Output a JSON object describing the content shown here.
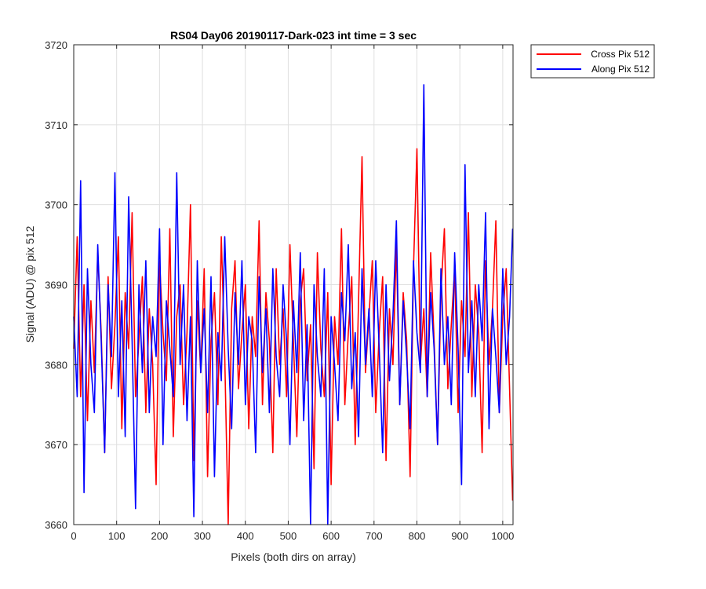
{
  "chart_data": {
    "type": "line",
    "title": "RS04 Day06 20190117-Dark-023 int time = 3 sec",
    "xlabel": "Pixels (both dirs on array)",
    "ylabel": "Signal (ADU) @ pix 512",
    "xlim": [
      0,
      1024
    ],
    "ylim": [
      3660,
      3720
    ],
    "xticks": [
      0,
      100,
      200,
      300,
      400,
      500,
      600,
      700,
      800,
      900,
      1000
    ],
    "yticks": [
      3660,
      3670,
      3680,
      3690,
      3700,
      3710,
      3720
    ],
    "grid": true,
    "legend_position": "outside top-right",
    "series": [
      {
        "name": "Cross Pix 512",
        "color": "#ff0000",
        "x": [
          0,
          8,
          16,
          24,
          32,
          40,
          48,
          56,
          64,
          72,
          80,
          88,
          96,
          104,
          112,
          120,
          128,
          136,
          144,
          152,
          160,
          168,
          176,
          184,
          192,
          200,
          208,
          216,
          224,
          232,
          240,
          248,
          256,
          264,
          272,
          280,
          288,
          296,
          304,
          312,
          320,
          328,
          336,
          344,
          352,
          360,
          368,
          376,
          384,
          392,
          400,
          408,
          416,
          424,
          432,
          440,
          448,
          456,
          464,
          472,
          480,
          488,
          496,
          504,
          512,
          520,
          528,
          536,
          544,
          552,
          560,
          568,
          576,
          584,
          592,
          600,
          608,
          616,
          624,
          632,
          640,
          648,
          656,
          664,
          672,
          680,
          688,
          696,
          704,
          712,
          720,
          728,
          736,
          744,
          752,
          760,
          768,
          776,
          784,
          792,
          800,
          808,
          816,
          824,
          832,
          840,
          848,
          856,
          864,
          872,
          880,
          888,
          896,
          904,
          912,
          920,
          928,
          936,
          944,
          952,
          960,
          968,
          976,
          984,
          992,
          1000,
          1008,
          1016,
          1023
        ],
        "y": [
          3682,
          3696,
          3676,
          3690,
          3673,
          3688,
          3679,
          3694,
          3684,
          3669,
          3691,
          3677,
          3685,
          3696,
          3672,
          3689,
          3682,
          3699,
          3676,
          3683,
          3691,
          3674,
          3687,
          3680,
          3665,
          3693,
          3684,
          3678,
          3697,
          3671,
          3686,
          3690,
          3675,
          3684,
          3700,
          3668,
          3688,
          3679,
          3692,
          3666,
          3683,
          3689,
          3675,
          3696,
          3681,
          3660,
          3687,
          3693,
          3677,
          3684,
          3690,
          3672,
          3686,
          3681,
          3698,
          3675,
          3689,
          3683,
          3669,
          3692,
          3680,
          3687,
          3676,
          3695,
          3683,
          3671,
          3688,
          3692,
          3678,
          3685,
          3667,
          3694,
          3682,
          3676,
          3689,
          3665,
          3686,
          3680,
          3697,
          3675,
          3684,
          3691,
          3670,
          3688,
          3706,
          3679,
          3686,
          3693,
          3674,
          3684,
          3691,
          3668,
          3687,
          3680,
          3695,
          3675,
          3689,
          3683,
          3666,
          3692,
          3707,
          3680,
          3687,
          3676,
          3694,
          3683,
          3670,
          3689,
          3697,
          3677,
          3685,
          3692,
          3674,
          3688,
          3681,
          3699,
          3676,
          3690,
          3684,
          3669,
          3693,
          3680,
          3687,
          3698,
          3674,
          3686,
          3692,
          3677,
          3663
        ]
      },
      {
        "name": "Along Pix 512",
        "color": "#0000ff",
        "x": [
          0,
          8,
          16,
          24,
          32,
          40,
          48,
          56,
          64,
          72,
          80,
          88,
          96,
          104,
          112,
          120,
          128,
          136,
          144,
          152,
          160,
          168,
          176,
          184,
          192,
          200,
          208,
          216,
          224,
          232,
          240,
          248,
          256,
          264,
          272,
          280,
          288,
          296,
          304,
          312,
          320,
          328,
          336,
          344,
          352,
          360,
          368,
          376,
          384,
          392,
          400,
          408,
          416,
          424,
          432,
          440,
          448,
          456,
          464,
          472,
          480,
          488,
          496,
          504,
          512,
          520,
          528,
          536,
          544,
          552,
          560,
          568,
          576,
          584,
          592,
          600,
          608,
          616,
          624,
          632,
          640,
          648,
          656,
          664,
          672,
          680,
          688,
          696,
          704,
          712,
          720,
          728,
          736,
          744,
          752,
          760,
          768,
          776,
          784,
          792,
          800,
          808,
          816,
          824,
          832,
          840,
          848,
          856,
          864,
          872,
          880,
          888,
          896,
          904,
          912,
          920,
          928,
          936,
          944,
          952,
          960,
          968,
          976,
          984,
          992,
          1000,
          1008,
          1016,
          1023
        ],
        "y": [
          3686,
          3676,
          3703,
          3664,
          3692,
          3680,
          3674,
          3695,
          3683,
          3669,
          3690,
          3681,
          3704,
          3676,
          3688,
          3671,
          3701,
          3683,
          3662,
          3690,
          3679,
          3693,
          3674,
          3686,
          3681,
          3697,
          3670,
          3688,
          3682,
          3676,
          3704,
          3680,
          3690,
          3673,
          3686,
          3661,
          3693,
          3679,
          3687,
          3674,
          3691,
          3666,
          3684,
          3678,
          3696,
          3682,
          3672,
          3689,
          3680,
          3693,
          3675,
          3686,
          3683,
          3669,
          3691,
          3679,
          3687,
          3674,
          3692,
          3681,
          3676,
          3690,
          3683,
          3670,
          3688,
          3679,
          3694,
          3673,
          3685,
          3660,
          3690,
          3681,
          3676,
          3692,
          3660,
          3686,
          3680,
          3673,
          3689,
          3683,
          3695,
          3677,
          3684,
          3671,
          3692,
          3680,
          3687,
          3676,
          3693,
          3682,
          3669,
          3690,
          3678,
          3686,
          3698,
          3675,
          3688,
          3681,
          3672,
          3693,
          3684,
          3679,
          3715,
          3676,
          3689,
          3682,
          3670,
          3692,
          3680,
          3686,
          3675,
          3694,
          3682,
          3665,
          3705,
          3679,
          3688,
          3676,
          3690,
          3683,
          3699,
          3672,
          3687,
          3681,
          3674,
          3692,
          3680,
          3686,
          3697
        ]
      }
    ]
  }
}
